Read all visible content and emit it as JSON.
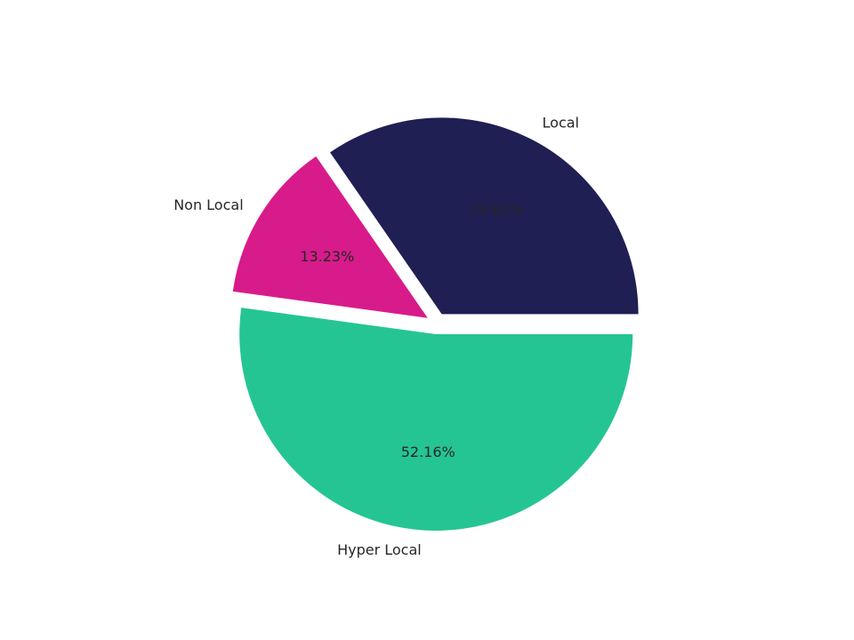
{
  "chart_data": {
    "type": "pie",
    "title": "",
    "labels": [
      "Local",
      "Non Local",
      "Hyper Local"
    ],
    "values": [
      34.62,
      13.23,
      52.16
    ],
    "percent_labels": [
      "34.62%",
      "13.23%",
      "52.16%"
    ],
    "colors": [
      "#1f1f54",
      "#d81b8a",
      "#25c593"
    ],
    "start_angle_deg": 0,
    "direction": "counterclockwise",
    "exploded": true,
    "legend": "none"
  }
}
